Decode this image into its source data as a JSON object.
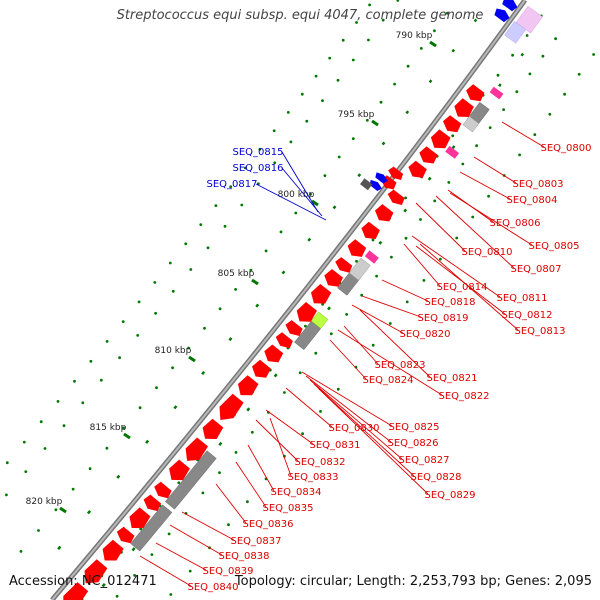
{
  "title": "Streptococcus equi subsp. equi 4047, complete genome",
  "accession": "Accession: NC_012471",
  "summary": "Topology: circular; Length: 2,253,793 bp; Genes: 2,095",
  "colors": {
    "backbone": "#8a8a8a",
    "forward_cds": "#0000ee",
    "reverse_cds": "#ff0000",
    "rna": "#ff3399",
    "pseudogene": "#888888",
    "other_feature": "#bbff44",
    "gc_dots": "#007700",
    "label_forward": "#0000cc",
    "label_reverse": "#dd0000"
  },
  "ticks": [
    "790 kbp",
    "795 kbp",
    "800 kbp",
    "805 kbp",
    "810 kbp",
    "815 kbp",
    "820 kbp"
  ],
  "forward_labels": [
    "SEQ_0815",
    "SEQ_0816",
    "SEQ_0817"
  ],
  "reverse_labels": [
    "SEQ_0800",
    "SEQ_0803",
    "SEQ_0804",
    "SEQ_0806",
    "SEQ_0805",
    "SEQ_0810",
    "SEQ_0807",
    "SEQ_0814",
    "SEQ_0811",
    "SEQ_0818",
    "SEQ_0812",
    "SEQ_0813",
    "SEQ_0819",
    "SEQ_0820",
    "SEQ_0823",
    "SEQ_0821",
    "SEQ_0824",
    "SEQ_0822",
    "SEQ_0825",
    "SEQ_0830",
    "SEQ_0826",
    "SEQ_0831",
    "SEQ_0827",
    "SEQ_0832",
    "SEQ_0828",
    "SEQ_0833",
    "SEQ_0829",
    "SEQ_0834",
    "SEQ_0835",
    "SEQ_0836",
    "SEQ_0837",
    "SEQ_0838",
    "SEQ_0839",
    "SEQ_0840"
  ]
}
